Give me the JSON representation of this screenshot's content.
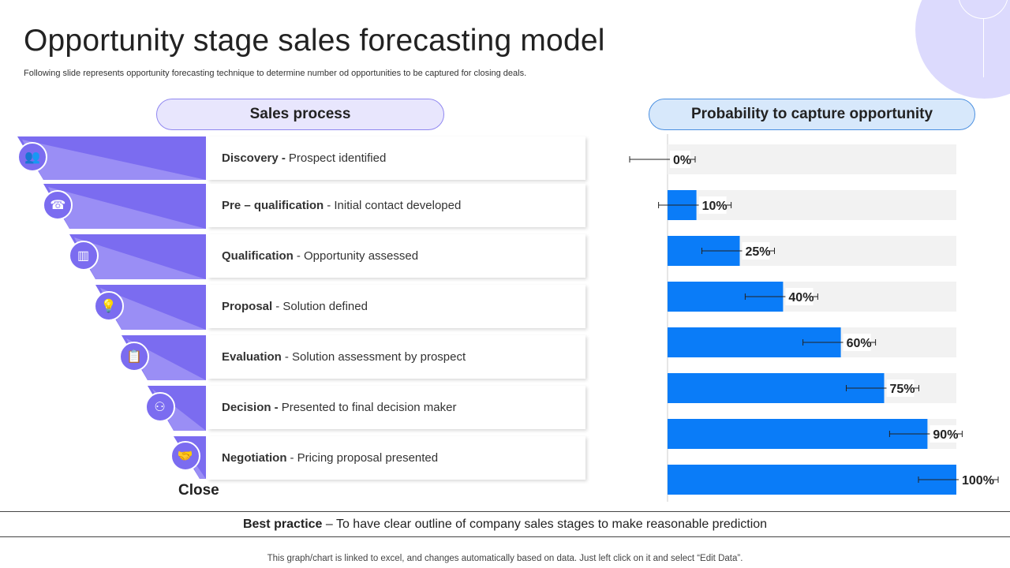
{
  "title": "Opportunity stage sales forecasting model",
  "subtitle": "Following slide represents opportunity forecasting technique to determine number od opportunities to be captured for closing deals.",
  "left_header": "Sales process",
  "right_header": "Probability to capture opportunity",
  "stages": [
    {
      "name": "Discovery -",
      "desc": "Prospect identified",
      "icon": "people-search-icon"
    },
    {
      "name": "Pre – qualification",
      "desc": "- Initial  contact developed",
      "icon": "contact-card-icon"
    },
    {
      "name": "Qualification",
      "desc": "- Opportunity assessed",
      "icon": "analytics-icon"
    },
    {
      "name": "Proposal",
      "desc": "- Solution defined",
      "icon": "idea-presenter-icon"
    },
    {
      "name": "Evaluation",
      "desc": "- Solution assessment by prospect",
      "icon": "clipboard-search-icon"
    },
    {
      "name": "Decision -",
      "desc": "Presented to final decision maker",
      "icon": "decision-network-icon"
    },
    {
      "name": "Negotiation",
      "desc": "- Pricing proposal presented",
      "icon": "negotiation-icon"
    }
  ],
  "close_label": "Close",
  "best_practice": {
    "bold": "Best practice",
    "text": " – To have clear outline of company sales stages to make reasonable prediction"
  },
  "footer": "This graph/chart is linked to excel,  and changes automatically based on data. Just left click on it and select “Edit Data”.",
  "colors": {
    "funnel_dark": "#7b6cf0",
    "funnel_light": "#9a8ef5",
    "bar": "#0a7cf8",
    "track": "#f2f2f2"
  },
  "chart_data": {
    "type": "bar",
    "orientation": "horizontal",
    "values": [
      0,
      10,
      25,
      40,
      60,
      75,
      90,
      100
    ],
    "labels": [
      "0%",
      "10%",
      "25%",
      "40%",
      "60%",
      "75%",
      "90%",
      "100%"
    ],
    "xlim": [
      0,
      100
    ],
    "error_bars": true
  }
}
